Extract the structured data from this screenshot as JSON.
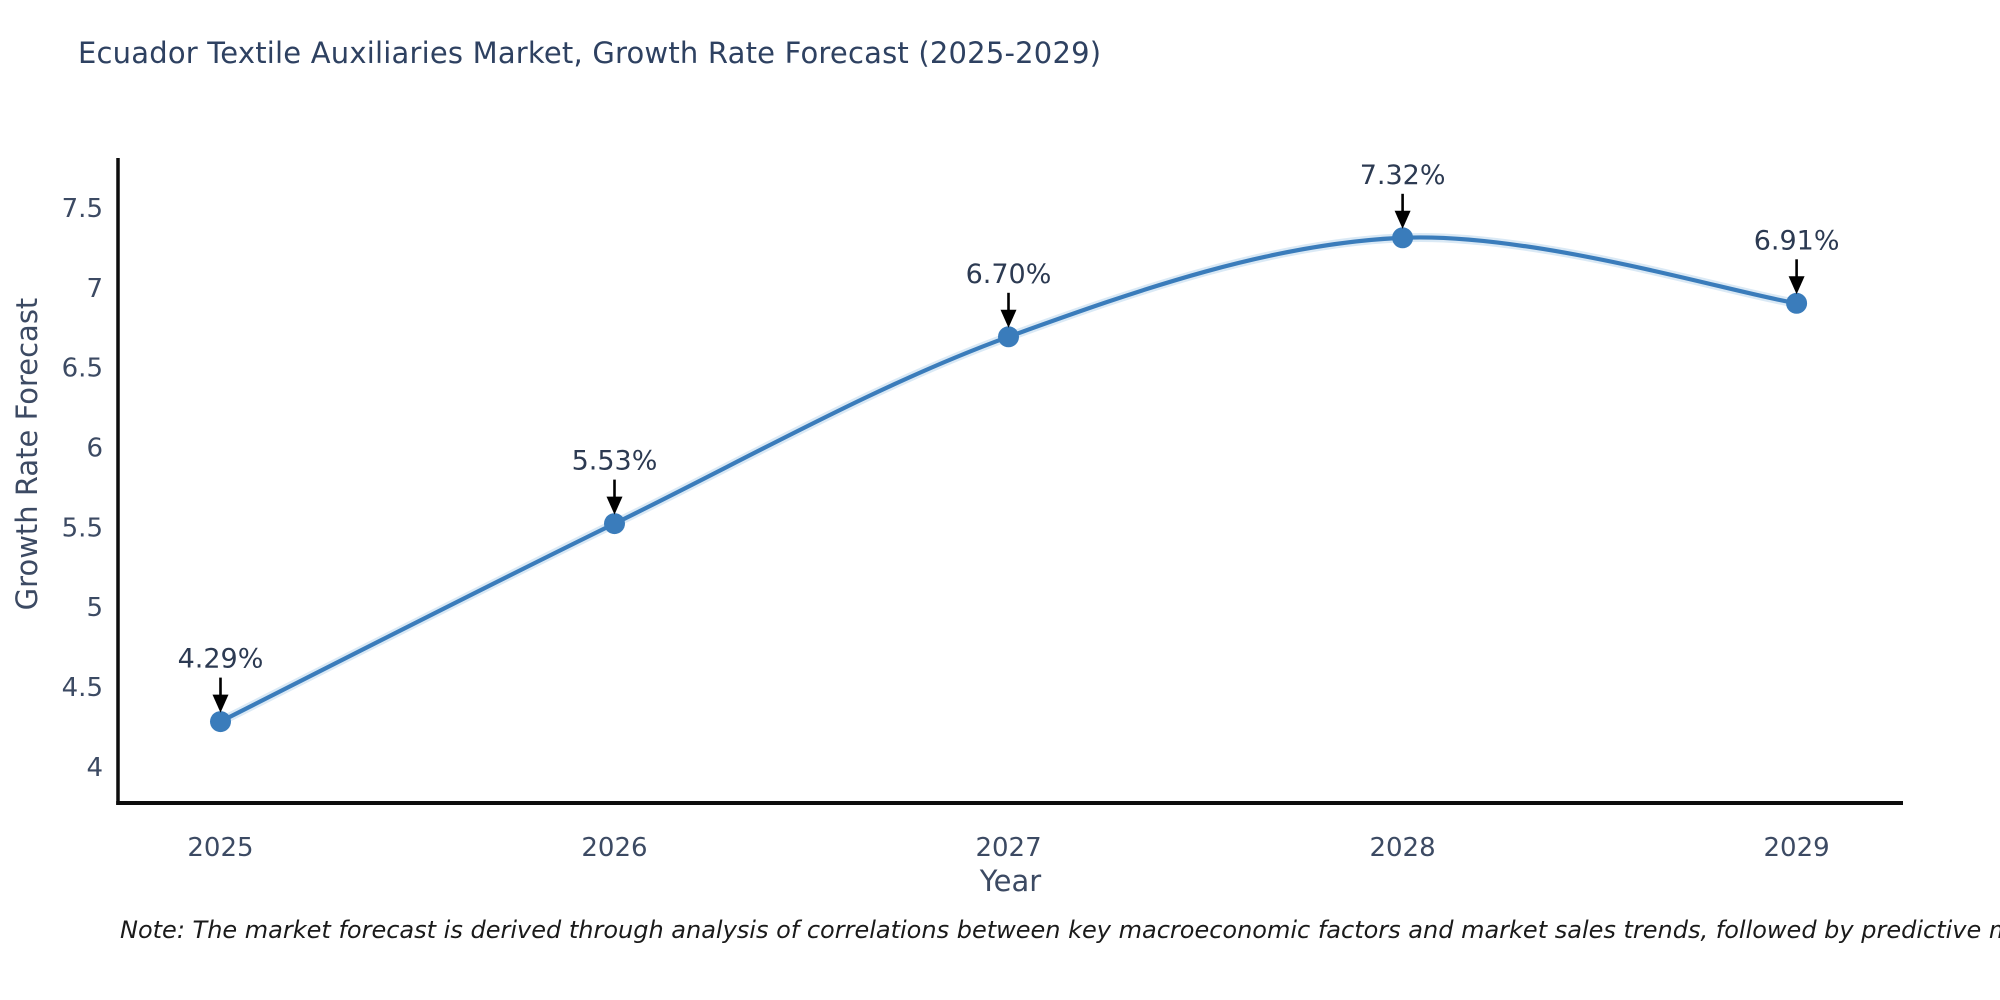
{
  "header": {
    "title": "Ecuador Textile Auxiliaries Market, Growth Rate Forecast (2025-2029)"
  },
  "footer": {
    "note": "Note: The market forecast is derived through analysis of correlations between key macroeconomic factors and market sales trends, followed by predictive modeling to project future sales"
  },
  "chart_data": {
    "type": "line",
    "title": "Ecuador Textile Auxiliaries Market, Growth Rate Forecast (2025-2029)",
    "xlabel": "Year",
    "ylabel": "Growth Rate Forecast",
    "x": [
      2025,
      2026,
      2027,
      2028,
      2029
    ],
    "series": [
      {
        "name": "Growth Rate Forecast",
        "values": [
          4.29,
          5.53,
          6.7,
          7.32,
          6.91
        ]
      }
    ],
    "point_labels": [
      "4.29%",
      "5.53%",
      "6.70%",
      "7.32%",
      "6.91%"
    ],
    "yticks": [
      4,
      4.5,
      5,
      5.5,
      6,
      6.5,
      7,
      7.5
    ],
    "ylim": [
      3.78,
      7.82
    ],
    "xlim": [
      2024.74,
      2029.27
    ],
    "grid": false,
    "legend": "none",
    "line_shape": "spline",
    "marker": "circle",
    "colors": {
      "line": "#3a7cbb",
      "line_halo": "#aecfe9",
      "marker": "#3a7cbb",
      "axis": "#0d0d0d",
      "tick_label": "#3c4a63",
      "axis_title": "#3c4a63",
      "annotation_text": "#2c3a52",
      "arrow": "#000000",
      "title": "#2e4161",
      "note": "#1a1a1a"
    }
  }
}
